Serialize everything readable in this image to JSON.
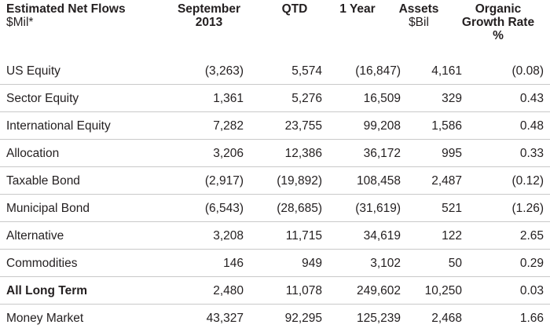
{
  "header": {
    "col0": {
      "line1": "Estimated Net Flows",
      "line2": "$Mil*"
    },
    "col1": {
      "line1": "September",
      "line2": "2013"
    },
    "col2": {
      "line1": "QTD"
    },
    "col3": {
      "line1": "1 Year"
    },
    "col4": {
      "line1": "Assets",
      "line2": "$Bil"
    },
    "col5": {
      "line1": "Organic",
      "line2": "Growth Rate",
      "line3": "%"
    }
  },
  "rows": [
    {
      "name": "US Equity",
      "september": "(3,263)",
      "qtd": "5,574",
      "one_year": "(16,847)",
      "assets": "4,161",
      "growth": "(0.08)"
    },
    {
      "name": "Sector Equity",
      "september": "1,361",
      "qtd": "5,276",
      "one_year": "16,509",
      "assets": "329",
      "growth": "0.43"
    },
    {
      "name": "International Equity",
      "september": "7,282",
      "qtd": "23,755",
      "one_year": "99,208",
      "assets": "1,586",
      "growth": "0.48"
    },
    {
      "name": "Allocation",
      "september": "3,206",
      "qtd": "12,386",
      "one_year": "36,172",
      "assets": "995",
      "growth": "0.33"
    },
    {
      "name": "Taxable Bond",
      "september": "(2,917)",
      "qtd": "(19,892)",
      "one_year": "108,458",
      "assets": "2,487",
      "growth": "(0.12)"
    },
    {
      "name": "Municipal Bond",
      "september": "(6,543)",
      "qtd": "(28,685)",
      "one_year": "(31,619)",
      "assets": "521",
      "growth": "(1.26)"
    },
    {
      "name": "Alternative",
      "september": "3,208",
      "qtd": "11,715",
      "one_year": "34,619",
      "assets": "122",
      "growth": "2.65"
    },
    {
      "name": "Commodities",
      "september": "146",
      "qtd": "949",
      "one_year": "3,102",
      "assets": "50",
      "growth": "0.29"
    },
    {
      "name": "All Long Term",
      "september": "2,480",
      "qtd": "11,078",
      "one_year": "249,602",
      "assets": "10,250",
      "growth": "0.03"
    },
    {
      "name": "Money Market",
      "september": "43,327",
      "qtd": "92,295",
      "one_year": "125,239",
      "assets": "2,468",
      "growth": "1.66"
    }
  ],
  "style": {
    "rule_color": "#c9c9c9",
    "text_color": "#231f20"
  }
}
